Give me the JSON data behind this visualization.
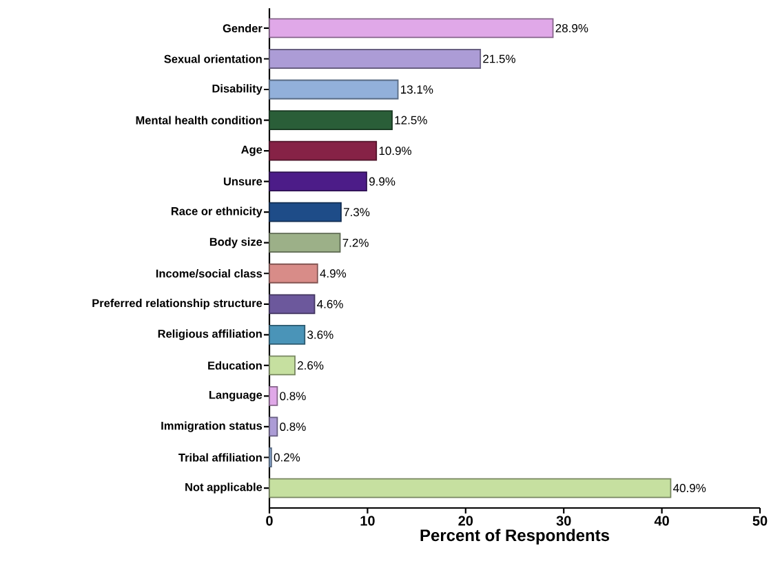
{
  "chart_data": {
    "type": "bar",
    "orientation": "horizontal",
    "xlabel": "Percent of Respondents",
    "categories": [
      "Gender",
      "Sexual orientation",
      "Disability",
      "Mental health condition",
      "Age",
      "Unsure",
      "Race or ethnicity",
      "Body size",
      "Income/social class",
      "Preferred relationship structure",
      "Religious affiliation",
      "Education",
      "Language",
      "Immigration status",
      "Tribal affiliation",
      "Not applicable"
    ],
    "values": [
      28.9,
      21.5,
      13.1,
      12.5,
      10.9,
      9.9,
      7.3,
      7.2,
      4.9,
      4.6,
      3.6,
      2.6,
      0.8,
      0.8,
      0.2,
      40.9
    ],
    "value_labels": [
      "28.9%",
      "21.5%",
      "13.1%",
      "12.5%",
      "10.9%",
      "9.9%",
      "7.3%",
      "7.2%",
      "4.9%",
      "4.6%",
      "3.6%",
      "2.6%",
      "0.8%",
      "0.8%",
      "0.2%",
      "40.9%"
    ],
    "colors": [
      "#e0a8e8",
      "#ac9cd6",
      "#92b0da",
      "#2a5e38",
      "#862246",
      "#4c1c88",
      "#1e4c88",
      "#9cb088",
      "#d88c88",
      "#6c589c",
      "#4a94b8",
      "#c6e0a0",
      "#e0a8e8",
      "#ac9cd6",
      "#92b0da",
      "#c6e0a0"
    ],
    "xlim": [
      0,
      50
    ],
    "xticks": [
      0,
      10,
      20,
      30,
      40,
      50
    ]
  }
}
